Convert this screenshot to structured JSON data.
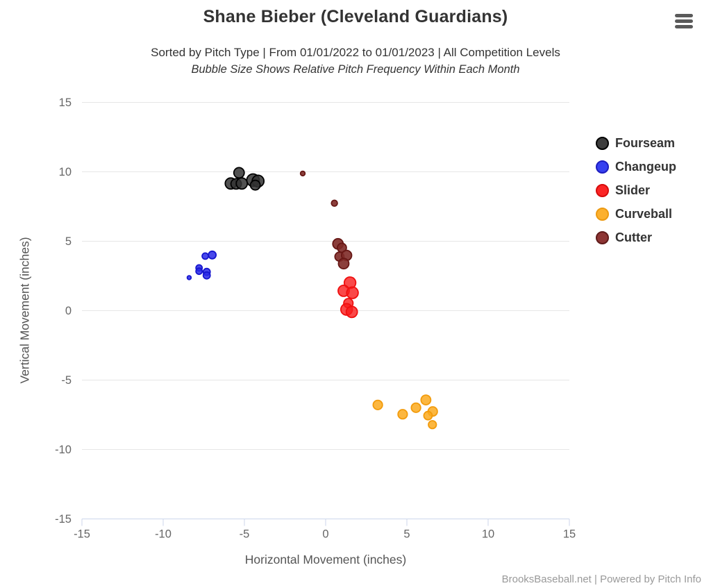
{
  "header": {
    "title": "Shane Bieber (Cleveland Guardians)",
    "subtitle": "Sorted by Pitch Type | From 01/01/2022 to 01/01/2023 | All Competition Levels",
    "subtitle2": "Bubble Size Shows Relative Pitch Frequency Within Each Month",
    "menu_icon": "hamburger-icon"
  },
  "footer": {
    "credit": "BrooksBaseball.net | Powered by Pitch Info"
  },
  "chart_data": {
    "type": "scatter",
    "variant": "bubble",
    "title": "Shane Bieber (Cleveland Guardians)",
    "subtitle": "Sorted by Pitch Type | From 01/01/2022 to 01/01/2023 | All Competition Levels",
    "note": "Bubble Size Shows Relative Pitch Frequency Within Each Month",
    "xlabel": "Horizontal Movement (inches)",
    "ylabel": "Vertical Movement (inches)",
    "xlim": [
      -15,
      15
    ],
    "ylim": [
      -15,
      15
    ],
    "xticks": [
      -15,
      -10,
      -5,
      0,
      5,
      10,
      15
    ],
    "yticks": [
      -15,
      -10,
      -5,
      0,
      5,
      10,
      15
    ],
    "grid": "horizontal-only",
    "legend_position": "right",
    "axis_line_color": "#ccd6eb",
    "gridline_color": "#e6e6e6",
    "tick_label_color": "#666666",
    "series": [
      {
        "name": "Fourseam",
        "fill": "#333333",
        "stroke": "#000000",
        "fill_opacity": 0.85,
        "legend_fill": "#3d3d3d",
        "legend_stroke": "#000000",
        "points": [
          {
            "x": -5.33,
            "y": 9.93,
            "r": 7.5
          },
          {
            "x": -5.84,
            "y": 9.16,
            "r": 8
          },
          {
            "x": -5.51,
            "y": 9.13,
            "r": 7.5
          },
          {
            "x": -5.16,
            "y": 9.16,
            "r": 8
          },
          {
            "x": -4.47,
            "y": 9.4,
            "r": 9
          },
          {
            "x": -4.16,
            "y": 9.33,
            "r": 8.5
          },
          {
            "x": -4.33,
            "y": 9.04,
            "r": 7
          }
        ]
      },
      {
        "name": "Changeup",
        "fill": "#2929e8",
        "stroke": "#1717cf",
        "fill_opacity": 0.85,
        "legend_fill": "#3640f0",
        "legend_stroke": "#1d1dbf",
        "points": [
          {
            "x": -7.41,
            "y": 3.93,
            "r": 4.5
          },
          {
            "x": -6.98,
            "y": 4.01,
            "r": 5.5
          },
          {
            "x": -7.79,
            "y": 3.08,
            "r": 4.5
          },
          {
            "x": -7.79,
            "y": 2.84,
            "r": 4.5
          },
          {
            "x": -7.32,
            "y": 2.79,
            "r": 5
          },
          {
            "x": -7.32,
            "y": 2.54,
            "r": 5
          },
          {
            "x": -8.4,
            "y": 2.38,
            "r": 2.8
          }
        ]
      },
      {
        "name": "Slider",
        "fill": "#f91c1c",
        "stroke": "#ef0f0f",
        "fill_opacity": 0.8,
        "legend_fill": "#fb2525",
        "legend_stroke": "#d60c0c",
        "points": [
          {
            "x": 1.5,
            "y": 2.01,
            "r": 8.3
          },
          {
            "x": 1.11,
            "y": 1.43,
            "r": 8
          },
          {
            "x": 1.65,
            "y": 1.29,
            "r": 8.3
          },
          {
            "x": 1.4,
            "y": 0.54,
            "r": 6.7
          },
          {
            "x": 1.29,
            "y": 0.09,
            "r": 8.3
          },
          {
            "x": 1.61,
            "y": -0.09,
            "r": 8
          }
        ]
      },
      {
        "name": "Curveball",
        "fill": "#fbaa1f",
        "stroke": "#f29b0c",
        "fill_opacity": 0.85,
        "legend_fill": "#fcb02e",
        "legend_stroke": "#ec9a12",
        "points": [
          {
            "x": 3.21,
            "y": -6.79,
            "r": 6.7
          },
          {
            "x": 4.74,
            "y": -7.46,
            "r": 6.7
          },
          {
            "x": 5.56,
            "y": -6.99,
            "r": 6.7
          },
          {
            "x": 6.17,
            "y": -6.43,
            "r": 7
          },
          {
            "x": 6.59,
            "y": -7.26,
            "r": 6.7
          },
          {
            "x": 6.3,
            "y": -7.56,
            "r": 6
          },
          {
            "x": 6.57,
            "y": -8.21,
            "r": 5.7
          }
        ]
      },
      {
        "name": "Cutter",
        "fill": "#7e2a27",
        "stroke": "#671715",
        "fill_opacity": 0.9,
        "legend_fill": "#8d3534",
        "legend_stroke": "#5f1b1a",
        "points": [
          {
            "x": 0.76,
            "y": 4.81,
            "r": 7.5
          },
          {
            "x": 1.0,
            "y": 4.53,
            "r": 6.5
          },
          {
            "x": 0.85,
            "y": 3.89,
            "r": 6.5
          },
          {
            "x": 1.29,
            "y": 3.98,
            "r": 7.3
          },
          {
            "x": 1.11,
            "y": 3.39,
            "r": 7.5
          },
          {
            "x": 0.54,
            "y": 7.74,
            "r": 4.3
          },
          {
            "x": -1.41,
            "y": 9.88,
            "r": 3.3
          }
        ]
      }
    ]
  }
}
